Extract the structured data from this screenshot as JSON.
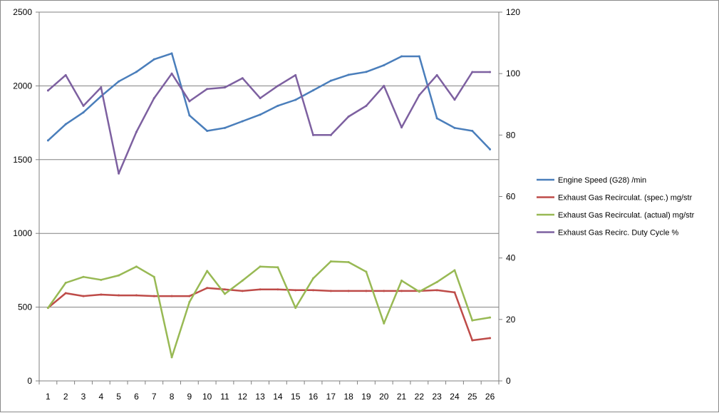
{
  "chart_data": {
    "type": "line",
    "title": "",
    "xlabel": "",
    "ylabel": "",
    "x": [
      1,
      2,
      3,
      4,
      5,
      6,
      7,
      8,
      9,
      10,
      11,
      12,
      13,
      14,
      15,
      16,
      17,
      18,
      19,
      20,
      21,
      22,
      23,
      24,
      25,
      26
    ],
    "x_tick_labels": [
      "1",
      "2",
      "3",
      "4",
      "5",
      "6",
      "7",
      "8",
      "9",
      "10",
      "11",
      "12",
      "13",
      "14",
      "15",
      "16",
      "17",
      "18",
      "19",
      "20",
      "21",
      "22",
      "23",
      "24",
      "25",
      "26"
    ],
    "ylim_left": [
      0,
      2500
    ],
    "y_ticks_left": [
      "0",
      "500",
      "1000",
      "1500",
      "2000",
      "2500"
    ],
    "ylim_right": [
      0,
      120
    ],
    "y_ticks_right": [
      "0",
      "20",
      "40",
      "60",
      "80",
      "100",
      "120"
    ],
    "grid": "horizontal",
    "legend_position": "right",
    "series": [
      {
        "name": "Engine Speed (G28)  /min",
        "axis": "left",
        "color": "#4a7ebb",
        "values": [
          1630,
          1740,
          1820,
          1930,
          2030,
          2095,
          2180,
          2220,
          1800,
          1695,
          1715,
          1760,
          1805,
          1865,
          1905,
          1970,
          2035,
          2075,
          2095,
          2140,
          2200,
          2200,
          1780,
          1715,
          1695,
          1570
        ]
      },
      {
        "name": "Exhaust Gas Recirculat. (spec.)  mg/str",
        "axis": "left",
        "color": "#be4b48",
        "values": [
          495,
          595,
          575,
          585,
          580,
          580,
          575,
          575,
          575,
          630,
          620,
          610,
          620,
          620,
          615,
          615,
          610,
          610,
          610,
          610,
          610,
          610,
          615,
          600,
          275,
          290
        ]
      },
      {
        "name": "Exhaust Gas Recirculat. (actual)  mg/str",
        "axis": "left",
        "color": "#98b954",
        "values": [
          495,
          665,
          705,
          685,
          715,
          775,
          705,
          160,
          535,
          745,
          590,
          680,
          775,
          770,
          495,
          695,
          810,
          805,
          740,
          390,
          680,
          605,
          670,
          750,
          410,
          430
        ]
      },
      {
        "name": "Exhaust Gas Recirc. Duty Cycle  %",
        "axis": "right",
        "color": "#7d60a0",
        "values": [
          94.5,
          99.5,
          89.5,
          95.5,
          67.5,
          81,
          92,
          100,
          91,
          95,
          95.5,
          98.5,
          92,
          96,
          99.5,
          80,
          80,
          86,
          89.5,
          96,
          82.5,
          93,
          99.5,
          91.5,
          100.5,
          100.5
        ]
      }
    ]
  }
}
